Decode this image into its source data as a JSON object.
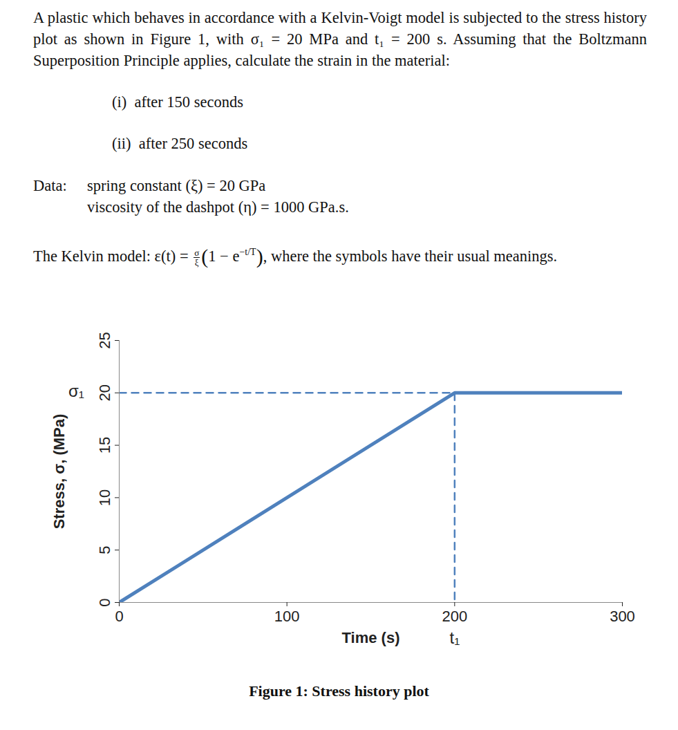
{
  "document": {
    "problem": "A plastic which behaves in accordance with a Kelvin-Voigt model is subjected to the stress history plot as shown in Figure 1, with σ₁ = 20 MPa and t₁ = 200 s. Assuming that the Boltzmann Superposition Principle applies, calculate the strain in the material:",
    "items": [
      "(i)  after 150 seconds",
      "(ii)  after 250 seconds"
    ],
    "data_heading": "Data:",
    "data_lines": [
      "spring constant (ξ) = 20 GPa",
      "viscosity of the dashpot (η) = 1000 GPa.s."
    ],
    "model": {
      "prefix": "The Kelvin model:",
      "lhs": "ε(t) =",
      "numerator": "σ",
      "denominator": "ξ",
      "open": "(1 − e",
      "exponent": "−t/T",
      "close": "),",
      "suffix": "where the symbols have their usual meanings."
    },
    "caption": "Figure 1: Stress history plot"
  },
  "chart_data": {
    "type": "line",
    "xlabel": "Time (s)",
    "ylabel": "Stress, σ, (MPa)",
    "xlim": [
      0,
      300
    ],
    "ylim": [
      0,
      25
    ],
    "xticks": [
      0,
      100,
      200,
      300
    ],
    "yticks": [
      0,
      5,
      10,
      15,
      20,
      25
    ],
    "grid": false,
    "series": [
      {
        "x": [
          0,
          200,
          300
        ],
        "values": [
          0,
          20,
          20
        ],
        "color": "#4f81bd",
        "line_style": "solid"
      },
      {
        "x": [
          0,
          200,
          200
        ],
        "values": [
          20,
          20,
          0
        ],
        "color": "#4f81bd",
        "line_style": "dashed"
      }
    ],
    "annotations": [
      {
        "text": "σ₁",
        "axis": "y",
        "value": 20
      },
      {
        "text": "t₁",
        "axis": "x",
        "value": 200
      }
    ]
  }
}
